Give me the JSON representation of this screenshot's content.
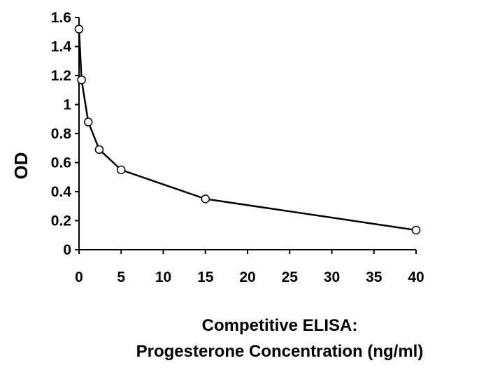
{
  "chart_data": {
    "type": "line",
    "title": "",
    "xlabel": [
      "Competitive ELISA:",
      "Progesterone Concentration (ng/ml)"
    ],
    "ylabel": "OD",
    "xlim": [
      0,
      40
    ],
    "ylim": [
      0,
      1.6
    ],
    "xticks": [
      "0",
      "5",
      "10",
      "15",
      "20",
      "25",
      "30",
      "35",
      "40"
    ],
    "yticks": [
      "0",
      "0.2",
      "0.4",
      "0.6",
      "0.8",
      "1",
      "1.2",
      "1.4",
      "1.6"
    ],
    "grid": false,
    "legend": false,
    "series": [
      {
        "x": [
          0,
          0.3,
          1.1,
          2.4,
          5,
          15,
          40
        ],
        "y": [
          1.52,
          1.17,
          0.88,
          0.69,
          0.55,
          0.35,
          0.135
        ]
      }
    ],
    "line_color": "#000000",
    "marker_fill": "#ffffff"
  }
}
